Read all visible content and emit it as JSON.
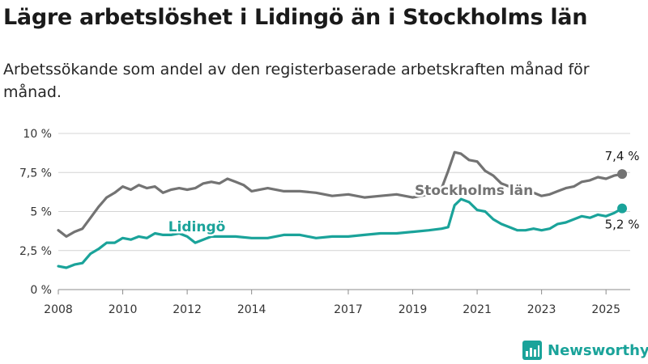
{
  "title": "Lägre arbetslöshet i Lidingö än i Stockholms län",
  "subtitle": "Arbetssökande som andel av den registerbaserade arbetskraften månad för månad.",
  "brand": {
    "name": "Newsworthy",
    "icon": "newsworthy-logo-icon",
    "color": "#1aa39a"
  },
  "chart_data": {
    "type": "line",
    "title": "Lägre arbetslöshet i Lidingö än i Stockholms län",
    "subtitle": "Arbetssökande som andel av den registerbaserade arbetskraften månad för månad.",
    "xlabel": "",
    "ylabel": "",
    "xlim": [
      2008,
      2025.75
    ],
    "ylim": [
      0,
      10
    ],
    "grid": true,
    "legend": "inline labels",
    "x_ticks": [
      2008,
      2010,
      2012,
      2014,
      2017,
      2019,
      2021,
      2023,
      2025
    ],
    "x_tick_labels": [
      "2008",
      "2010",
      "2012",
      "2014",
      "2017",
      "2019",
      "2021",
      "2023",
      "2025"
    ],
    "y_ticks": [
      0,
      2.5,
      5,
      7.5,
      10
    ],
    "y_tick_labels": [
      "0 %",
      "2,5 %",
      "5 %",
      "7,5 %",
      "10 %"
    ],
    "series": [
      {
        "name": "Stockholms län",
        "color": "#737373",
        "end_label": "7,4 %",
        "label_x": 2020.9,
        "label_y": 6.05,
        "x": [
          2008.0,
          2008.25,
          2008.5,
          2008.75,
          2009.0,
          2009.25,
          2009.5,
          2009.75,
          2010.0,
          2010.25,
          2010.5,
          2010.75,
          2011.0,
          2011.25,
          2011.5,
          2011.75,
          2012.0,
          2012.25,
          2012.5,
          2012.75,
          2013.0,
          2013.25,
          2013.5,
          2013.75,
          2014.0,
          2014.5,
          2015.0,
          2015.5,
          2016.0,
          2016.5,
          2017.0,
          2017.5,
          2018.0,
          2018.5,
          2019.0,
          2019.5,
          2019.9,
          2020.1,
          2020.3,
          2020.5,
          2020.75,
          2021.0,
          2021.25,
          2021.5,
          2021.75,
          2022.0,
          2022.25,
          2022.5,
          2022.75,
          2023.0,
          2023.25,
          2023.5,
          2023.75,
          2024.0,
          2024.25,
          2024.5,
          2024.75,
          2025.0,
          2025.25,
          2025.5
        ],
        "values": [
          3.8,
          3.4,
          3.7,
          3.9,
          4.6,
          5.3,
          5.9,
          6.2,
          6.6,
          6.4,
          6.7,
          6.5,
          6.6,
          6.2,
          6.4,
          6.5,
          6.4,
          6.5,
          6.8,
          6.9,
          6.8,
          7.1,
          6.9,
          6.7,
          6.3,
          6.5,
          6.3,
          6.3,
          6.2,
          6.0,
          6.1,
          5.9,
          6.0,
          6.1,
          5.9,
          6.1,
          6.5,
          7.6,
          8.8,
          8.7,
          8.3,
          8.2,
          7.6,
          7.3,
          6.8,
          6.6,
          6.3,
          6.4,
          6.2,
          6.0,
          6.1,
          6.3,
          6.5,
          6.6,
          6.9,
          7.0,
          7.2,
          7.1,
          7.3,
          7.4
        ]
      },
      {
        "name": "Lidingö",
        "color": "#1aa39a",
        "end_label": "5,2 %",
        "label_x": 2012.3,
        "label_y": 3.72,
        "x": [
          2008.0,
          2008.25,
          2008.5,
          2008.75,
          2009.0,
          2009.25,
          2009.5,
          2009.75,
          2010.0,
          2010.25,
          2010.5,
          2010.75,
          2011.0,
          2011.25,
          2011.5,
          2011.75,
          2012.0,
          2012.25,
          2012.5,
          2012.75,
          2013.0,
          2013.5,
          2014.0,
          2014.5,
          2015.0,
          2015.5,
          2016.0,
          2016.5,
          2017.0,
          2017.5,
          2018.0,
          2018.5,
          2019.0,
          2019.5,
          2019.9,
          2020.1,
          2020.3,
          2020.5,
          2020.75,
          2021.0,
          2021.25,
          2021.5,
          2021.75,
          2022.0,
          2022.25,
          2022.5,
          2022.75,
          2023.0,
          2023.25,
          2023.5,
          2023.75,
          2024.0,
          2024.25,
          2024.5,
          2024.75,
          2025.0,
          2025.25,
          2025.5
        ],
        "values": [
          1.5,
          1.4,
          1.6,
          1.7,
          2.3,
          2.6,
          3.0,
          3.0,
          3.3,
          3.2,
          3.4,
          3.3,
          3.6,
          3.5,
          3.5,
          3.6,
          3.4,
          3.0,
          3.2,
          3.4,
          3.4,
          3.4,
          3.3,
          3.3,
          3.5,
          3.5,
          3.3,
          3.4,
          3.4,
          3.5,
          3.6,
          3.6,
          3.7,
          3.8,
          3.9,
          4.0,
          5.4,
          5.8,
          5.6,
          5.1,
          5.0,
          4.5,
          4.2,
          4.0,
          3.8,
          3.8,
          3.9,
          3.8,
          3.9,
          4.2,
          4.3,
          4.5,
          4.7,
          4.6,
          4.8,
          4.7,
          4.9,
          5.2
        ]
      }
    ]
  }
}
